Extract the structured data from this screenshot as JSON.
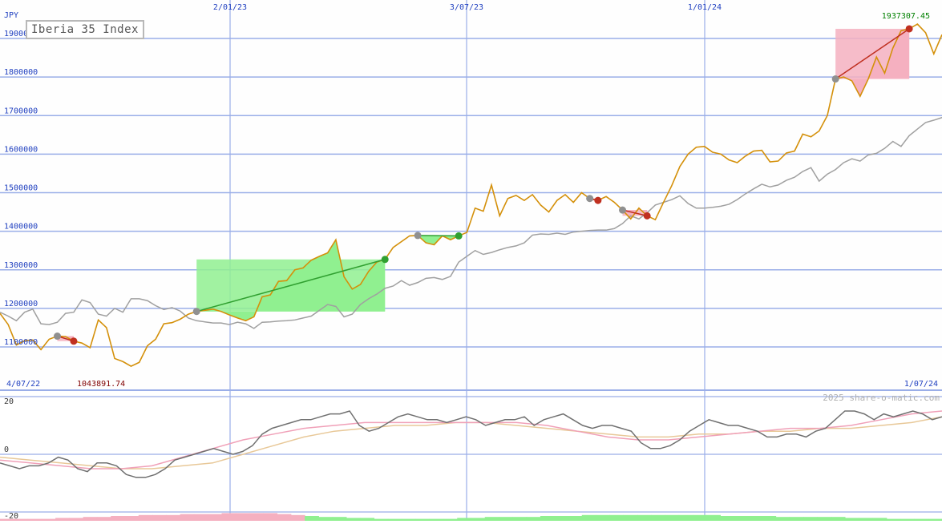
{
  "chart_data": [
    {
      "type": "line",
      "title": "Iberia 35 Index",
      "currency": "JPY",
      "x_start_label": "4/07/22",
      "x_end_label": "1/07/24",
      "date_labels": [
        "2/01/23",
        "3/07/23",
        "1/01/24"
      ],
      "y_ticks": [
        1100000,
        1200000,
        1300000,
        1400000,
        1500000,
        1600000,
        1700000,
        1800000,
        1900000
      ],
      "y_tick_labels": [
        "1100000",
        "1200000",
        "1300000",
        "1400000",
        "1500000",
        "1600000",
        "1700000",
        "1800000",
        "1900000"
      ],
      "ylim": [
        1000000,
        1985000
      ],
      "grid": true,
      "max_label": "1937307.45",
      "min_label": "1043891.74",
      "colors": {
        "price": "#d4900a",
        "average": "#a0a0a0",
        "grid": "#9aaee8",
        "rise_fill": "#90f090",
        "fall_fill": "#f5b0c0",
        "rise_marker": "#30a030",
        "fall_marker": "#c03020",
        "start_marker": "#909090",
        "max_label": "#008000",
        "min_label": "#800000"
      },
      "series": [
        {
          "key": "price",
          "values": [
            1187000,
            1158000,
            1105000,
            1116000,
            1118000,
            1093000,
            1120000,
            1128000,
            1127000,
            1115000,
            1110000,
            1098000,
            1170000,
            1150000,
            1070000,
            1062000,
            1050000,
            1060000,
            1103000,
            1120000,
            1160000,
            1163000,
            1172000,
            1185000,
            1192000,
            1195000,
            1198000,
            1192000,
            1183000,
            1175000,
            1168000,
            1178000,
            1230000,
            1235000,
            1270000,
            1272000,
            1300000,
            1305000,
            1325000,
            1335000,
            1344000,
            1378000,
            1282000,
            1250000,
            1262000,
            1296000,
            1320000,
            1327000,
            1358000,
            1373000,
            1388000,
            1389000,
            1370000,
            1365000,
            1388000,
            1378000,
            1388000,
            1397000,
            1460000,
            1452000,
            1520000,
            1440000,
            1485000,
            1493000,
            1480000,
            1495000,
            1468000,
            1450000,
            1480000,
            1495000,
            1475000,
            1500000,
            1485000,
            1480000,
            1490000,
            1475000,
            1455000,
            1432000,
            1460000,
            1440000,
            1430000,
            1475000,
            1518000,
            1568000,
            1600000,
            1618000,
            1620000,
            1605000,
            1600000,
            1585000,
            1578000,
            1595000,
            1608000,
            1610000,
            1580000,
            1582000,
            1603000,
            1608000,
            1652000,
            1645000,
            1660000,
            1700000,
            1795000,
            1800000,
            1790000,
            1750000,
            1795000,
            1852000,
            1810000,
            1875000,
            1920000,
            1925000,
            1937307,
            1915000,
            1860000,
            1910000
          ]
        },
        {
          "key": "average",
          "values": [
            1190000,
            1180000,
            1168000,
            1190000,
            1198000,
            1160000,
            1158000,
            1164000,
            1187000,
            1190000,
            1222000,
            1215000,
            1185000,
            1180000,
            1200000,
            1190000,
            1225000,
            1225000,
            1220000,
            1207000,
            1197000,
            1202000,
            1193000,
            1175000,
            1168000,
            1165000,
            1162000,
            1162000,
            1158000,
            1164000,
            1160000,
            1148000,
            1164000,
            1165000,
            1167000,
            1168000,
            1170000,
            1175000,
            1180000,
            1195000,
            1210000,
            1205000,
            1178000,
            1185000,
            1210000,
            1225000,
            1237000,
            1252000,
            1258000,
            1272000,
            1260000,
            1267000,
            1278000,
            1280000,
            1275000,
            1283000,
            1320000,
            1335000,
            1350000,
            1340000,
            1345000,
            1352000,
            1358000,
            1362000,
            1370000,
            1390000,
            1393000,
            1392000,
            1395000,
            1392000,
            1398000,
            1400000,
            1402000,
            1403000,
            1403000,
            1407000,
            1420000,
            1440000,
            1432000,
            1448000,
            1468000,
            1475000,
            1482000,
            1492000,
            1472000,
            1460000,
            1460000,
            1462000,
            1465000,
            1470000,
            1482000,
            1497000,
            1510000,
            1522000,
            1515000,
            1520000,
            1532000,
            1540000,
            1555000,
            1565000,
            1530000,
            1548000,
            1560000,
            1578000,
            1588000,
            1582000,
            1598000,
            1602000,
            1615000,
            1633000,
            1620000,
            1648000,
            1665000,
            1682000,
            1688000,
            1695000,
            1685000,
            1695000,
            1740000
          ]
        }
      ],
      "trades": [
        {
          "from": 7,
          "to": 9,
          "result": "fall"
        },
        {
          "from": 24,
          "to": 47,
          "result": "rise"
        },
        {
          "from": 51,
          "to": 56,
          "result": "rise"
        },
        {
          "from": 72,
          "to": 73,
          "result": "fall"
        },
        {
          "from": 76,
          "to": 79,
          "result": "fall"
        },
        {
          "from": 102,
          "to": 111,
          "result": "fall"
        },
        {
          "from": 125,
          "to": 138,
          "result": "rise"
        }
      ]
    },
    {
      "type": "line",
      "y_ticks": [
        20,
        0,
        -20
      ],
      "y_tick_labels": [
        "20",
        "0",
        "-20"
      ],
      "ylim": [
        -20,
        20
      ],
      "watermark": "2025 share-o-matic.com",
      "colors": {
        "momentum": "#707070",
        "signal_fast": "#f0a0b8",
        "signal_slow": "#e8c898",
        "histogram_pos": "#90f090",
        "histogram_neg": "#f5b0c0"
      },
      "series": [
        {
          "key": "momentum",
          "values": [
            -3,
            -4,
            -5,
            -4,
            -4,
            -3,
            -1,
            -2,
            -5,
            -6,
            -3,
            -3,
            -4,
            -7,
            -8,
            -8,
            -7,
            -5,
            -2,
            -1,
            0,
            1,
            2,
            1,
            0,
            1,
            3,
            7,
            9,
            10,
            11,
            12,
            12,
            13,
            14,
            14,
            15,
            10,
            8,
            9,
            11,
            13,
            14,
            13,
            12,
            12,
            11,
            12,
            13,
            12,
            10,
            11,
            12,
            12,
            13,
            10,
            12,
            13,
            14,
            12,
            10,
            9,
            10,
            10,
            9,
            8,
            4,
            2,
            2,
            3,
            5,
            8,
            10,
            12,
            11,
            10,
            10,
            9,
            8,
            6,
            6,
            7,
            7,
            6,
            8,
            9,
            12,
            15,
            15,
            14,
            12,
            14,
            13,
            14,
            15,
            14,
            12,
            13
          ],
          "start_index": 0
        },
        {
          "key": "signal_fast",
          "values": [
            -2,
            -3,
            -4,
            -5,
            -5,
            -4,
            -1,
            2,
            5,
            7,
            9,
            10,
            11,
            11,
            11,
            11,
            11,
            11,
            10,
            8,
            6,
            5,
            5,
            6,
            7,
            8,
            9,
            9,
            10,
            12,
            14,
            15
          ]
        },
        {
          "key": "signal_slow",
          "values": [
            -1,
            -2,
            -3,
            -4,
            -5,
            -5,
            -4,
            -3,
            0,
            3,
            6,
            8,
            9,
            10,
            10,
            11,
            11,
            10,
            9,
            8,
            7,
            6,
            6,
            7,
            7,
            8,
            8,
            9,
            9,
            10,
            11,
            13
          ]
        },
        {
          "key": "histogram",
          "values": [
            -10,
            -10,
            -10,
            -10,
            -11,
            -11,
            -12,
            -12,
            -13,
            -13,
            -14,
            -14,
            -14,
            -15,
            -15,
            -15,
            -16,
            -16,
            -16,
            -16,
            -15,
            -14,
            -13,
            -12,
            -12,
            -11,
            -11,
            -10,
            -10,
            -10,
            -10,
            -10,
            -10,
            -11,
            -11,
            -12,
            -12,
            -12,
            -12,
            -13,
            -13,
            -13,
            -14,
            -14,
            -14,
            -14,
            -14,
            -14,
            -14,
            -14,
            -14,
            -14,
            -13,
            -13,
            -13,
            -13,
            -12,
            -12,
            -12,
            -12,
            -12,
            -11,
            -11,
            -11,
            -10,
            -10,
            -10,
            -10
          ]
        }
      ]
    }
  ]
}
